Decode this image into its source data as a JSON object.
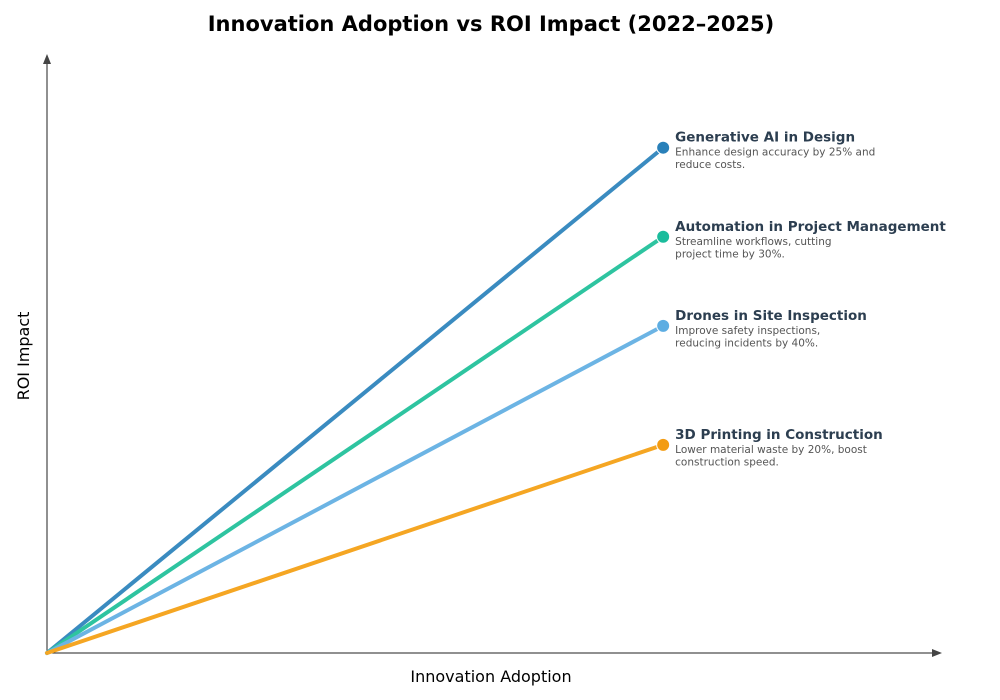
{
  "chart_data": {
    "type": "line",
    "title": "Innovation Adoption vs ROI Impact (2022–2025)",
    "xlabel": "Innovation Adoption",
    "ylabel": "ROI Impact",
    "xlim": [
      0,
      1
    ],
    "ylim": [
      0,
      1
    ],
    "grid": false,
    "ticks": false,
    "series": [
      {
        "name": "Generative AI in Design",
        "description": [
          "Enhance design accuracy by 25% and",
          "reduce costs."
        ],
        "x": [
          0,
          0.69
        ],
        "y": [
          0,
          0.845
        ],
        "color": "#3a8bc0",
        "marker_color": "#2980b9"
      },
      {
        "name": "Automation in Project Management",
        "description": [
          "Streamline workflows, cutting",
          "project time by 30%."
        ],
        "x": [
          0,
          0.69
        ],
        "y": [
          0,
          0.696
        ],
        "color": "#2ec4a0",
        "marker_color": "#1abc9c"
      },
      {
        "name": "Drones in Site Inspection",
        "description": [
          "Improve safety inspections,",
          "reducing incidents by 40%."
        ],
        "x": [
          0,
          0.69
        ],
        "y": [
          0,
          0.547
        ],
        "color": "#6cb4e4",
        "marker_color": "#5dade2"
      },
      {
        "name": "3D Printing in Construction",
        "description": [
          "Lower material waste by 20%, boost",
          "construction speed."
        ],
        "x": [
          0,
          0.69
        ],
        "y": [
          0,
          0.348
        ],
        "color": "#f5a623",
        "marker_color": "#f39c12"
      }
    ]
  }
}
